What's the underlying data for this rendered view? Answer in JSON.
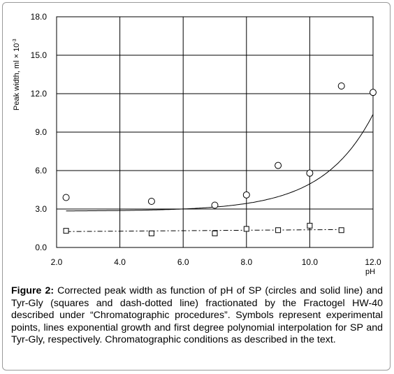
{
  "chart_data": {
    "type": "scatter",
    "title": "",
    "xlabel": "pH",
    "ylabel": "Peak width,  ml  ×  10",
    "ylabel_superscript": "-3",
    "xlim": [
      2.0,
      12.0
    ],
    "ylim": [
      0.0,
      18.0
    ],
    "xticks": [
      "2.0",
      "4.0",
      "6.0",
      "8.0",
      "10.0",
      "12.0"
    ],
    "yticks": [
      "0.0",
      "3.0",
      "6.0",
      "9.0",
      "12.0",
      "15.0",
      "18.0"
    ],
    "xtick_values": [
      2,
      4,
      6,
      8,
      10,
      12
    ],
    "ytick_values": [
      0,
      3,
      6,
      9,
      12,
      15,
      18
    ],
    "grid": true,
    "series": [
      {
        "marker": "circle",
        "points": [
          [
            2.3,
            3.9
          ],
          [
            5.0,
            3.6
          ],
          [
            7.0,
            3.3
          ],
          [
            8.0,
            4.1
          ],
          [
            9.0,
            6.4
          ],
          [
            10.0,
            5.8
          ],
          [
            11.0,
            12.6
          ],
          [
            12.0,
            12.1
          ]
        ],
        "fit": "exponential",
        "fit_line": "solid",
        "fit_params": {
          "a": 2.836,
          "b": 0.00375,
          "c": 0.634
        }
      },
      {
        "marker": "square",
        "points": [
          [
            2.3,
            1.3
          ],
          [
            5.0,
            1.1
          ],
          [
            7.0,
            1.1
          ],
          [
            8.0,
            1.45
          ],
          [
            9.0,
            1.35
          ],
          [
            10.0,
            1.7
          ],
          [
            11.0,
            1.35
          ]
        ],
        "fit": "linear",
        "fit_line": "dash-dot",
        "fit_params": {
          "m": 0.018,
          "k": 1.2
        }
      }
    ]
  },
  "caption": {
    "label": "Figure 2:",
    "text": " Corrected peak width as function of pH of SP (circles and solid line) and Tyr-Gly (squares and dash-dotted line) fractionated by the Fractogel HW-40 described under “Chromatographic procedures”. Symbols represent experimental points, lines exponential growth and first degree polynomial interpolation for SP and Tyr-Gly, respectively. Chromatographic conditions as described in the text."
  }
}
